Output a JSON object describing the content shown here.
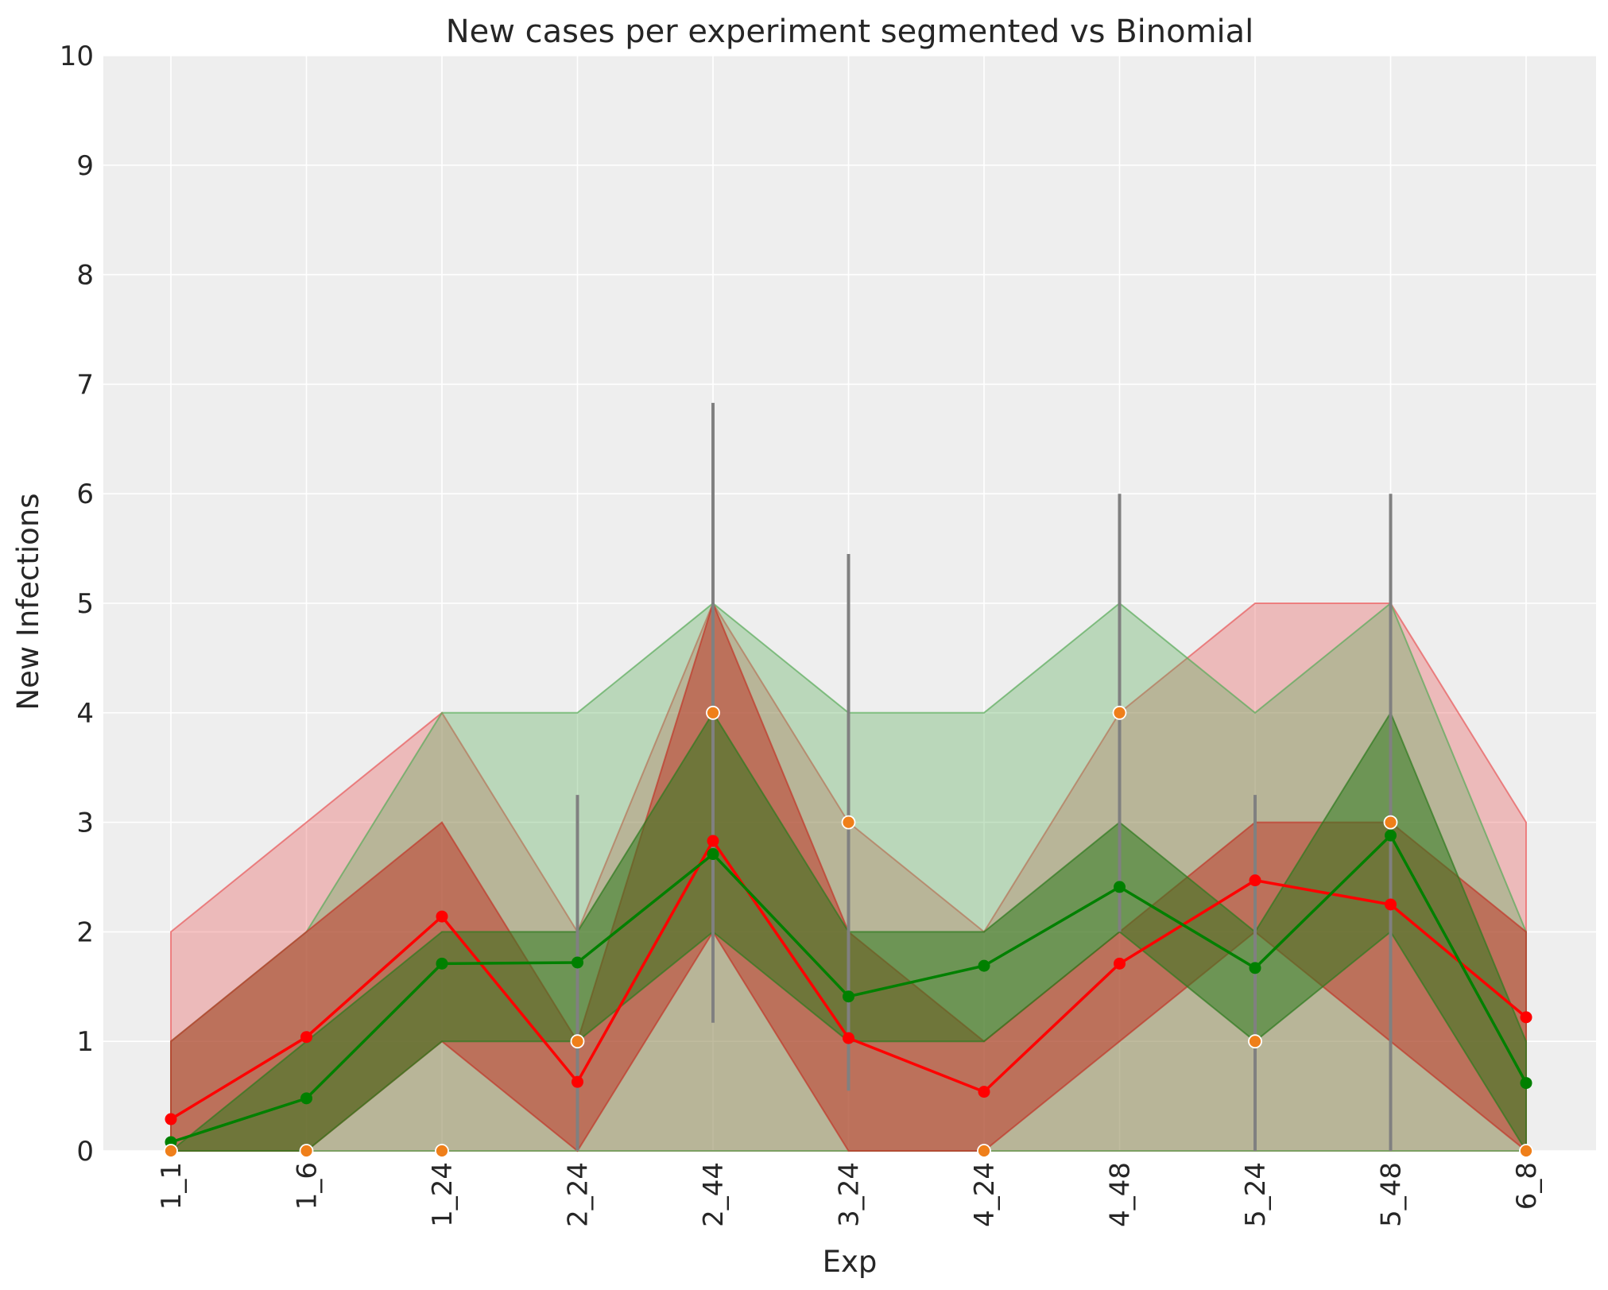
{
  "chart_data": {
    "type": "line",
    "title": "New cases per experiment segmented vs Binomial",
    "xlabel": "Exp",
    "ylabel": "New Infections",
    "categories": [
      "1_1",
      "1_6",
      "1_24",
      "2_24",
      "2_44",
      "3_24",
      "4_24",
      "4_48",
      "5_24",
      "5_48",
      "6_8"
    ],
    "ylim": [
      0,
      10
    ],
    "yticks": [
      0,
      1,
      2,
      3,
      4,
      5,
      6,
      7,
      8,
      9,
      10
    ],
    "grid": true,
    "background": "#eeeeee",
    "bands": [
      {
        "color": "#e8595a",
        "opacity": 0.35,
        "lower": [
          0,
          0,
          0,
          0,
          0,
          0,
          0,
          0,
          0,
          0,
          0
        ],
        "upper": [
          2,
          3,
          4,
          2,
          5,
          3,
          2,
          4,
          5,
          5,
          3
        ]
      },
      {
        "color": "#5aab5a",
        "opacity": 0.35,
        "lower": [
          0,
          0,
          0,
          0,
          0,
          0,
          0,
          0,
          0,
          0,
          0
        ],
        "upper": [
          1,
          2,
          4,
          4,
          5,
          4,
          4,
          5,
          4,
          5,
          2
        ]
      },
      {
        "color": "#c0382a",
        "opacity": 0.55,
        "lower": [
          0,
          0,
          1,
          0,
          2,
          0,
          0,
          1,
          2,
          1,
          0
        ],
        "upper": [
          1,
          2,
          3,
          1,
          5,
          2,
          1,
          2,
          3,
          3,
          2
        ]
      },
      {
        "color": "#2f7a1f",
        "opacity": 0.55,
        "lower": [
          0,
          0,
          1,
          1,
          2,
          1,
          1,
          2,
          1,
          2,
          0
        ],
        "upper": [
          0,
          1,
          2,
          2,
          4,
          2,
          2,
          3,
          2,
          4,
          1
        ]
      }
    ],
    "series": [
      {
        "color": "#ff0000",
        "values": [
          0.29,
          1.04,
          2.14,
          0.63,
          2.83,
          1.03,
          0.54,
          1.71,
          2.47,
          2.25,
          1.22
        ]
      },
      {
        "color": "#008000",
        "values": [
          0.08,
          0.48,
          1.71,
          1.72,
          2.71,
          1.41,
          1.69,
          2.41,
          1.67,
          2.88,
          0.62
        ]
      }
    ],
    "observed": {
      "color": "#ef7f1a",
      "values": [
        0,
        0,
        0,
        1,
        4,
        3,
        0,
        4,
        1,
        3,
        0
      ]
    },
    "error_bars": {
      "color": "#808080",
      "segments": [
        {
          "x": "2_24",
          "low": 0,
          "high": 3.25
        },
        {
          "x": "2_44",
          "low": 1.17,
          "high": 6.83
        },
        {
          "x": "3_24",
          "low": 0.55,
          "high": 5.45
        },
        {
          "x": "4_48",
          "low": 2.0,
          "high": 6.0
        },
        {
          "x": "5_24",
          "low": 0,
          "high": 3.25
        },
        {
          "x": "5_48",
          "low": 0,
          "high": 6.0
        }
      ]
    }
  }
}
